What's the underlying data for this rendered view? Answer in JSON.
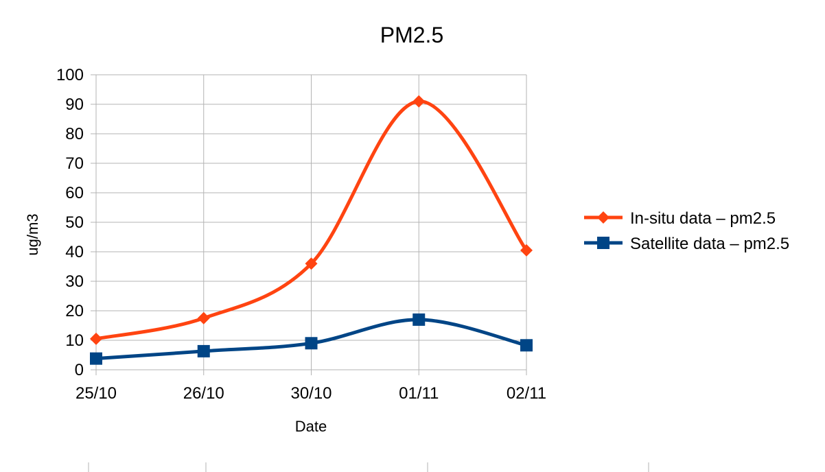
{
  "chart_data": {
    "type": "line",
    "title": "PM2.5",
    "xlabel": "Date",
    "ylabel": "ug/m3",
    "ylim": [
      0,
      100
    ],
    "yticks": [
      0,
      10,
      20,
      30,
      40,
      50,
      60,
      70,
      80,
      90,
      100
    ],
    "categories": [
      "25/10",
      "26/10",
      "30/10",
      "01/11",
      "02/11"
    ],
    "grid": true,
    "smooth": true,
    "legend_position": "right",
    "series": [
      {
        "name": "In-situ data – pm2.5",
        "values": [
          10.5,
          17.5,
          36,
          91,
          40.5
        ],
        "color": "#ff4411",
        "marker": "diamond"
      },
      {
        "name": "Satellite data – pm2.5",
        "values": [
          3.8,
          6.3,
          9,
          17,
          8.3
        ],
        "color": "#004586",
        "marker": "square"
      }
    ]
  }
}
